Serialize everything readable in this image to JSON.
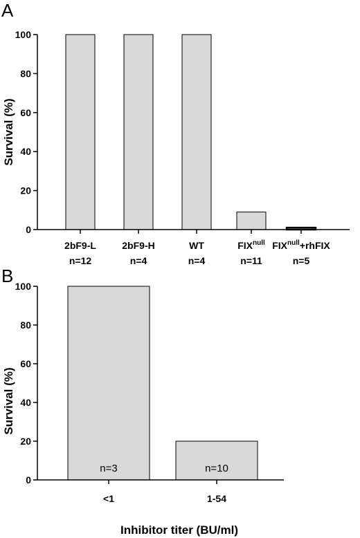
{
  "chart_data": [
    {
      "type": "bar",
      "panel_label": "A",
      "title": "",
      "xlabel": "",
      "ylabel": "Survival (%)",
      "ylim": [
        0,
        100
      ],
      "yticks": [
        0,
        20,
        40,
        60,
        80,
        100
      ],
      "grid": false,
      "bar_color": "#d9d9d9",
      "categories": [
        {
          "base": "2bF9-L",
          "sup": "",
          "rest": "",
          "n": "n=12"
        },
        {
          "base": "2bF9-H",
          "sup": "",
          "rest": "",
          "n": "n=4"
        },
        {
          "base": "WT",
          "sup": "",
          "rest": "",
          "n": "n=4"
        },
        {
          "base": "FIX",
          "sup": "null",
          "rest": "",
          "n": "n=11"
        },
        {
          "base": "FIX",
          "sup": "null",
          "rest": "+rhFIX",
          "n": "n=5"
        }
      ],
      "values": [
        100,
        100,
        100,
        9,
        1
      ]
    },
    {
      "type": "bar",
      "panel_label": "B",
      "title": "",
      "xlabel": "Inhibitor titer (BU/ml)",
      "ylabel": "Survival (%)",
      "ylim": [
        0,
        100
      ],
      "yticks": [
        0,
        20,
        40,
        60,
        80,
        100
      ],
      "grid": false,
      "bar_color": "#d9d9d9",
      "categories": [
        "<1",
        "1-54"
      ],
      "values": [
        100,
        20
      ],
      "bar_labels": [
        "n=3",
        "n=10"
      ]
    }
  ]
}
